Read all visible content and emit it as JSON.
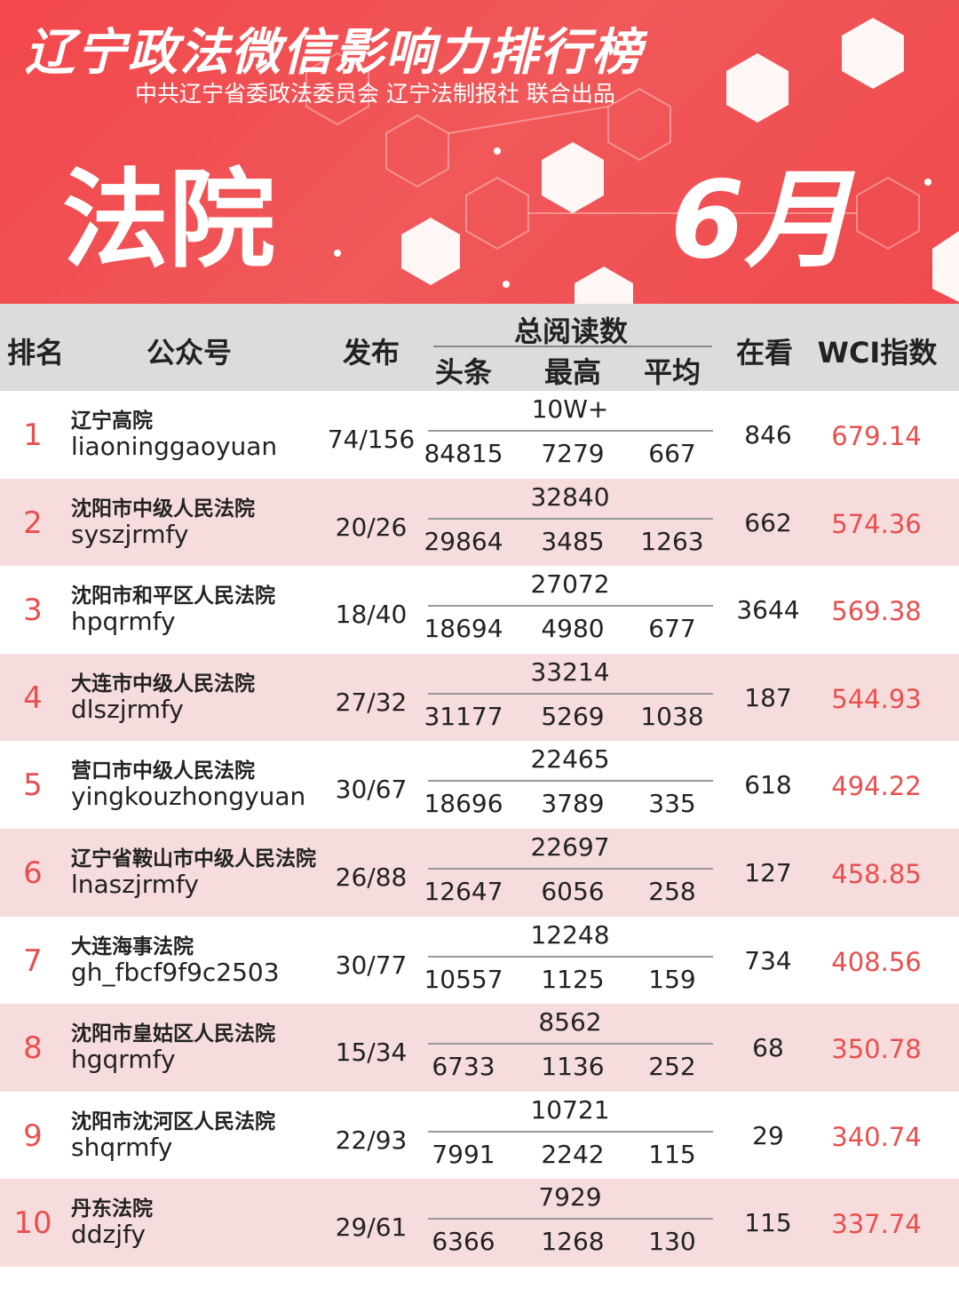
{
  "header": {
    "title": "辽宁政法微信影响力排行榜",
    "subtitle": "中共辽宁省委政法委员会 辽宁法制报社 联合出品",
    "category": "法院",
    "month": "6月"
  },
  "table": {
    "columns": {
      "rank": "排名",
      "account": "公众号",
      "publish": "发布",
      "total_reads": "总阅读数",
      "headline": "头条",
      "max": "最高",
      "average": "平均",
      "looking": "在看",
      "wci": "WCI指数"
    },
    "rows": [
      {
        "rank": "1",
        "name": "辽宁高院",
        "id": "liaoninggaoyuan",
        "publish": "74/156",
        "total": "10W+",
        "headline": "84815",
        "max": "7279",
        "average": "667",
        "looking": "846",
        "wci": "679.14"
      },
      {
        "rank": "2",
        "name": "沈阳市中级人民法院",
        "id": "syszjrmfy",
        "publish": "20/26",
        "total": "32840",
        "headline": "29864",
        "max": "3485",
        "average": "1263",
        "looking": "662",
        "wci": "574.36"
      },
      {
        "rank": "3",
        "name": "沈阳市和平区人民法院",
        "id": "hpqrmfy",
        "publish": "18/40",
        "total": "27072",
        "headline": "18694",
        "max": "4980",
        "average": "677",
        "looking": "3644",
        "wci": "569.38"
      },
      {
        "rank": "4",
        "name": "大连市中级人民法院",
        "id": "dlszjrmfy",
        "publish": "27/32",
        "total": "33214",
        "headline": "31177",
        "max": "5269",
        "average": "1038",
        "looking": "187",
        "wci": "544.93"
      },
      {
        "rank": "5",
        "name": "营口市中级人民法院",
        "id": "yingkouzhongyuan",
        "publish": "30/67",
        "total": "22465",
        "headline": "18696",
        "max": "3789",
        "average": "335",
        "looking": "618",
        "wci": "494.22"
      },
      {
        "rank": "6",
        "name": "辽宁省鞍山市中级人民法院",
        "id": "lnaszjrmfy",
        "publish": "26/88",
        "total": "22697",
        "headline": "12647",
        "max": "6056",
        "average": "258",
        "looking": "127",
        "wci": "458.85"
      },
      {
        "rank": "7",
        "name": "大连海事法院",
        "id": "gh_fbcf9f9c2503",
        "publish": "30/77",
        "total": "12248",
        "headline": "10557",
        "max": "1125",
        "average": "159",
        "looking": "734",
        "wci": "408.56"
      },
      {
        "rank": "8",
        "name": "沈阳市皇姑区人民法院",
        "id": "hgqrmfy",
        "publish": "15/34",
        "total": "8562",
        "headline": "6733",
        "max": "1136",
        "average": "252",
        "looking": "68",
        "wci": "350.78"
      },
      {
        "rank": "9",
        "name": "沈阳市沈河区人民法院",
        "id": "shqrmfy",
        "publish": "22/93",
        "total": "10721",
        "headline": "7991",
        "max": "2242",
        "average": "115",
        "looking": "29",
        "wci": "340.74"
      },
      {
        "rank": "10",
        "name": "丹东法院",
        "id": "ddzjfy",
        "publish": "29/61",
        "total": "7929",
        "headline": "6366",
        "max": "1268",
        "average": "130",
        "looking": "115",
        "wci": "337.74"
      }
    ]
  }
}
